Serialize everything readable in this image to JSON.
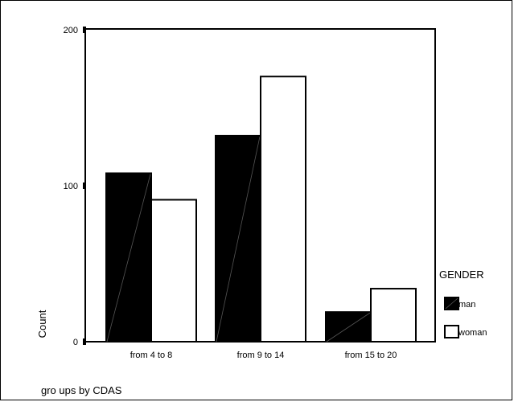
{
  "chart_data": {
    "type": "bar",
    "title": "",
    "xlabel": "gro ups by CDAS",
    "ylabel": "Count",
    "ylim": [
      0,
      200
    ],
    "yticks": [
      0,
      100,
      200
    ],
    "categories": [
      "from 4 to 8",
      "from 9  to 14",
      "from 15 to 20"
    ],
    "series": [
      {
        "name": "man",
        "values": [
          108,
          132,
          19
        ],
        "color": "#000000"
      },
      {
        "name": "woman",
        "values": [
          91,
          170,
          34
        ],
        "color": "#ffffff"
      }
    ],
    "legend": {
      "title": "GENDER",
      "placement": "right"
    },
    "grid": false
  }
}
